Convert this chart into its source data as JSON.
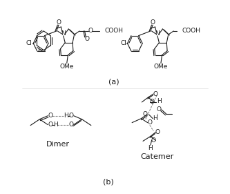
{
  "title_a": "(a)",
  "title_b": "(b)",
  "dimer_label": "Dimer",
  "catemer_label": "Catemer",
  "bg_color": "#ffffff",
  "line_color": "#1a1a1a",
  "dot_color": "#888888",
  "font_size": 6.5,
  "label_font_size": 8,
  "fig_width": 3.33,
  "fig_height": 2.81,
  "dpi": 100
}
